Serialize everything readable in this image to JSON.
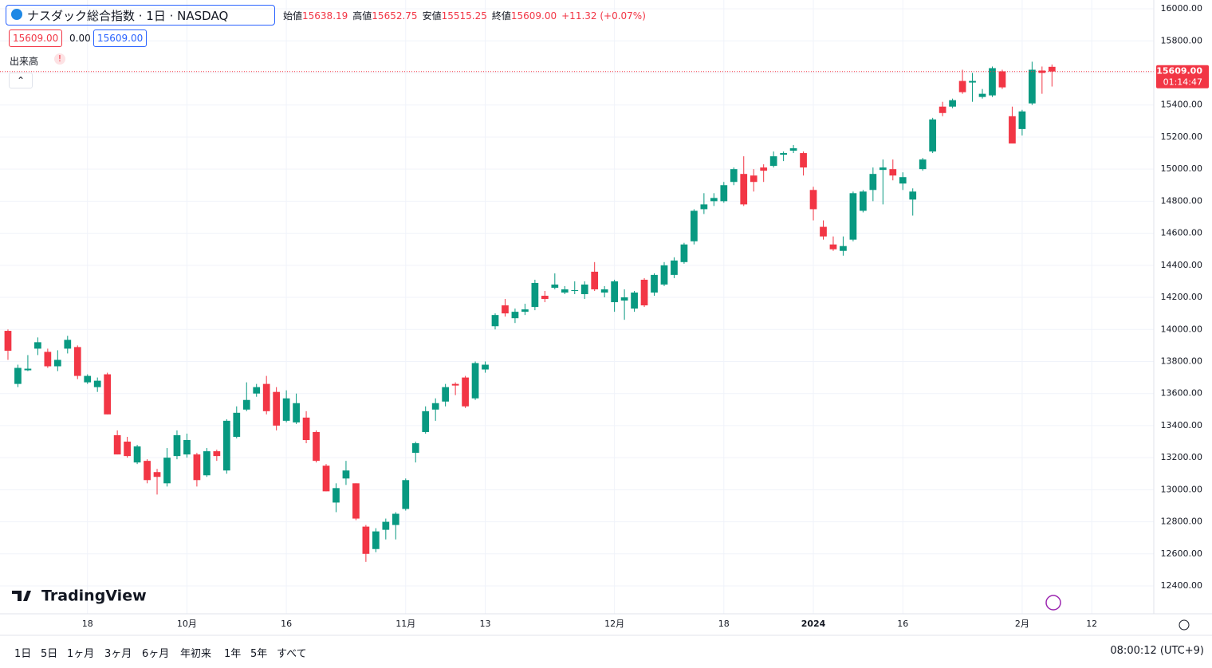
{
  "header": {
    "title": "ナスダック総合指数 · 1日 · NASDAQ",
    "legend": [
      [
        "始値",
        "15638.19"
      ],
      [
        "高値",
        "15652.75"
      ],
      [
        "安値",
        "15515.25"
      ],
      [
        "終値",
        "15609.00"
      ]
    ],
    "change": "+11.32 (+0.07%)",
    "bid": "15609.00",
    "spread": "0.00",
    "ask": "15609.00",
    "volume_label": "出来高",
    "warning": "!"
  },
  "chart_data": {
    "type": "candlestick",
    "up_color": "#089981",
    "down_color": "#f23645",
    "open": [
      13991,
      13660,
      13745,
      13880,
      13860,
      13770,
      13880,
      13890,
      13670,
      13640,
      13720,
      13340,
      13300,
      13170,
      13180,
      13110,
      13040,
      13210,
      13220,
      13220,
      13090,
      13240,
      13120,
      13330,
      13500,
      13600,
      13660,
      13610,
      13430,
      13420,
      13450,
      13360,
      13150,
      12920,
      13070,
      13040,
      12770,
      12630,
      12750,
      12780,
      12880,
      13230,
      13360,
      13500,
      13550,
      13660,
      13700,
      13570,
      13750,
      14020,
      14150,
      14070,
      14110,
      14140,
      14210,
      14260,
      14230,
      14240,
      14220,
      14360,
      14230,
      14170,
      14180,
      14130,
      14310,
      14230,
      14280,
      14340,
      14420,
      14550,
      14750,
      14800,
      14800,
      14920,
      14970,
      14960,
      15010,
      15020,
      15090,
      15115,
      15100,
      14870,
      14640,
      14530,
      14490,
      14560,
      14740,
      14870,
      14995,
      15000,
      14910,
      14810,
      15000,
      15110,
      15390,
      15390,
      15550,
      15540,
      15450,
      15460,
      15610,
      15330,
      15250,
      15410,
      15615,
      15638.19
    ],
    "high": [
      14000,
      13780,
      13840,
      13950,
      13880,
      13870,
      13960,
      13900,
      13720,
      13700,
      13730,
      13370,
      13330,
      13280,
      13190,
      13130,
      13260,
      13370,
      13350,
      13230,
      13260,
      13250,
      13440,
      13520,
      13670,
      13660,
      13710,
      13640,
      13620,
      13600,
      13490,
      13370,
      13160,
      13040,
      13180,
      13040,
      12780,
      12760,
      12820,
      12860,
      13070,
      13300,
      13520,
      13570,
      13660,
      13670,
      13710,
      13800,
      13800,
      14100,
      14190,
      14130,
      14160,
      14310,
      14240,
      14350,
      14270,
      14300,
      14300,
      14420,
      14270,
      14310,
      14250,
      14240,
      14320,
      14350,
      14420,
      14450,
      14540,
      14750,
      14850,
      14850,
      14920,
      15010,
      15080,
      15000,
      15030,
      15110,
      15110,
      15150,
      15110,
      14890,
      14680,
      14580,
      14580,
      14860,
      14870,
      15010,
      15060,
      15060,
      14980,
      14880,
      15070,
      15320,
      15420,
      15440,
      15620,
      15600,
      15500,
      15640,
      15620,
      15390,
      15370,
      15670,
      15640,
      15652.75
    ],
    "low": [
      13810,
      13640,
      13740,
      13840,
      13760,
      13740,
      13850,
      13690,
      13660,
      13610,
      13470,
      13220,
      13200,
      13160,
      13040,
      12970,
      13020,
      13190,
      13200,
      13020,
      13080,
      13180,
      13100,
      13320,
      13490,
      13580,
      13470,
      13370,
      13420,
      13410,
      13290,
      13170,
      12990,
      12860,
      13030,
      12810,
      12550,
      12610,
      12690,
      12690,
      12870,
      13170,
      13350,
      13430,
      13520,
      13590,
      13510,
      13560,
      13730,
      14000,
      14080,
      14040,
      14090,
      14120,
      14170,
      14250,
      14220,
      14220,
      14190,
      14240,
      14200,
      14110,
      14060,
      14110,
      14140,
      14210,
      14270,
      14320,
      14410,
      14530,
      14720,
      14770,
      14790,
      14900,
      14770,
      14860,
      14920,
      15010,
      15050,
      15100,
      14960,
      14680,
      14560,
      14490,
      14460,
      14550,
      14730,
      14800,
      14780,
      14930,
      14870,
      14710,
      14990,
      15100,
      15330,
      15380,
      15470,
      15420,
      15440,
      15450,
      15500,
      15160,
      15210,
      15400,
      15470,
      15515.25
    ],
    "close": [
      13867,
      13760,
      13755,
      13920,
      13770,
      13810,
      13935,
      13710,
      13710,
      13680,
      13470,
      13220,
      13210,
      13270,
      13060,
      13080,
      13200,
      13340,
      13310,
      13060,
      13240,
      13210,
      13430,
      13480,
      13560,
      13640,
      13490,
      13400,
      13570,
      13540,
      13310,
      13180,
      12990,
      13010,
      13120,
      12820,
      12600,
      12740,
      12800,
      12850,
      13060,
      13290,
      13490,
      13540,
      13640,
      13650,
      13520,
      13790,
      13780,
      14090,
      14100,
      14110,
      14125,
      14290,
      14190,
      14280,
      14250,
      14245,
      14280,
      14250,
      14250,
      14300,
      14200,
      14230,
      14150,
      14340,
      14400,
      14430,
      14530,
      14740,
      14780,
      14820,
      14900,
      15000,
      14780,
      14920,
      14990,
      15080,
      15100,
      15130,
      15010,
      14750,
      14580,
      14500,
      14520,
      14850,
      14860,
      14970,
      15010,
      14960,
      14950,
      14860,
      15060,
      15310,
      15350,
      15430,
      15480,
      15550,
      15470,
      15630,
      15510,
      15160,
      15360,
      15620,
      15600,
      15609
    ],
    "xlim": [
      -0.8,
      115.24
    ],
    "xticks": [
      {
        "value": 8,
        "label": "18"
      },
      {
        "value": 18,
        "label": "10月"
      },
      {
        "value": 28,
        "label": "16"
      },
      {
        "value": 40,
        "label": "11月"
      },
      {
        "value": 48,
        "label": "13"
      },
      {
        "value": 61,
        "label": "12月"
      },
      {
        "value": 72,
        "label": "18"
      },
      {
        "value": 81,
        "label": "2024"
      },
      {
        "value": 90,
        "label": "16"
      },
      {
        "value": 102,
        "label": "2月"
      },
      {
        "value": 109,
        "label": "12"
      }
    ],
    "ylim": [
      12226,
      16055
    ],
    "yticks": [
      {
        "value": 12400,
        "label": "12400.00"
      },
      {
        "value": 12600,
        "label": "12600.00"
      },
      {
        "value": 12800,
        "label": "12800.00"
      },
      {
        "value": 13000,
        "label": "13000.00"
      },
      {
        "value": 13200,
        "label": "13200.00"
      },
      {
        "value": 13400,
        "label": "13400.00"
      },
      {
        "value": 13600,
        "label": "13600.00"
      },
      {
        "value": 13800,
        "label": "13800.00"
      },
      {
        "value": 14000,
        "label": "14000.00"
      },
      {
        "value": 14200,
        "label": "14200.00"
      },
      {
        "value": 14400,
        "label": "14400.00"
      },
      {
        "value": 14600,
        "label": "14600.00"
      },
      {
        "value": 14800,
        "label": "14800.00"
      },
      {
        "value": 15000,
        "label": "15000.00"
      },
      {
        "value": 15200,
        "label": "15200.00"
      },
      {
        "value": 15400,
        "label": "15400.00"
      },
      {
        "value": 15600,
        "label": "15600.00"
      },
      {
        "value": 15800,
        "label": "15800.00"
      },
      {
        "value": 16000,
        "label": "16000.00"
      }
    ],
    "grid": true,
    "last_price": {
      "value": 15609,
      "label": "15609.00"
    },
    "countdown": "01:14:47"
  },
  "branding": "TradingView",
  "toolbar": {
    "ranges": [
      "1日",
      "5日",
      "1ヶ月",
      "3ヶ月",
      "6ヶ月",
      "年初来",
      "1年",
      "5年",
      "すべて"
    ],
    "clock": "08:00:12 (UTC+9)"
  }
}
